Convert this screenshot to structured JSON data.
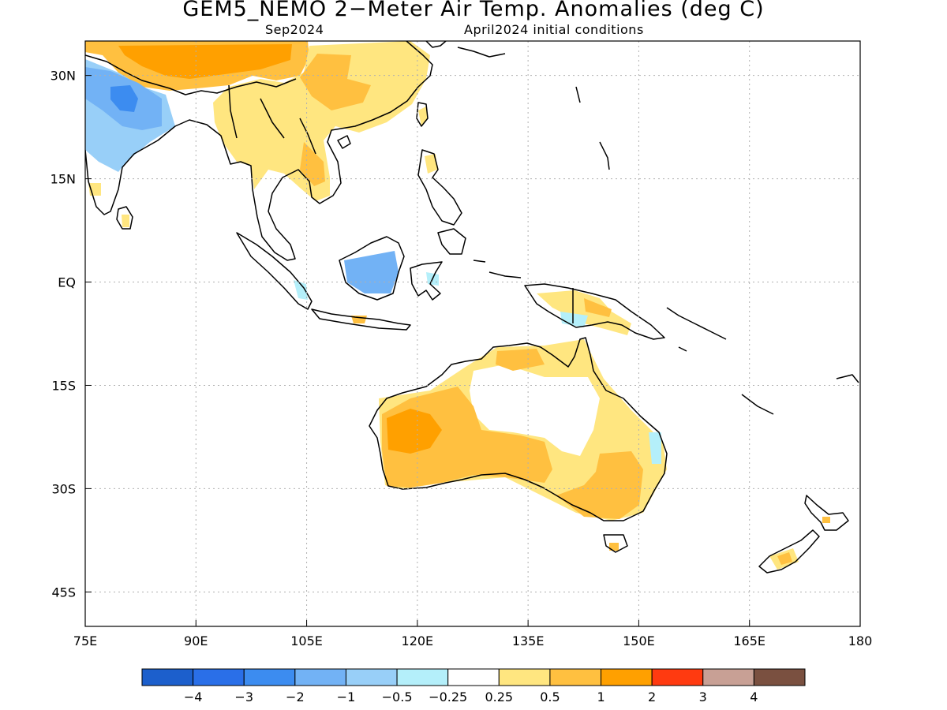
{
  "title": "GEM5_NEMO 2−Meter Air Temp. Anomalies (deg C)",
  "subtitle_left": "Sep2024",
  "subtitle_right": "April2024 initial conditions",
  "map": {
    "lon_range": [
      75,
      180
    ],
    "lat_range": [
      -50,
      35
    ],
    "lat_ticks": [
      {
        "value": 30,
        "label": "30N"
      },
      {
        "value": 15,
        "label": "15N"
      },
      {
        "value": 0,
        "label": "EQ"
      },
      {
        "value": -15,
        "label": "15S"
      },
      {
        "value": -30,
        "label": "30S"
      },
      {
        "value": -45,
        "label": "45S"
      }
    ],
    "lon_ticks": [
      {
        "value": 75,
        "label": "75E"
      },
      {
        "value": 90,
        "label": "90E"
      },
      {
        "value": 105,
        "label": "105E"
      },
      {
        "value": 120,
        "label": "120E"
      },
      {
        "value": 135,
        "label": "135E"
      },
      {
        "value": 150,
        "label": "150E"
      },
      {
        "value": 165,
        "label": "165E"
      },
      {
        "value": 180,
        "label": "180"
      }
    ],
    "grid": true
  },
  "colorbar": {
    "colors": [
      "#1c5fcc",
      "#2a6fe8",
      "#3c8cf0",
      "#72b2f5",
      "#98cff8",
      "#b4effa",
      "#ffffff",
      "#ffe680",
      "#ffc040",
      "#ffa000",
      "#ff3a10",
      "#c8a095",
      "#7a5040"
    ],
    "labels": [
      "−4",
      "−3",
      "−2",
      "−1",
      "−0.5",
      "−0.25",
      "0.25",
      "0.5",
      "1",
      "2",
      "3",
      "4"
    ]
  },
  "anomaly_fields": [
    {
      "region": "Indian subcontinent",
      "color": "#72b2f5"
    },
    {
      "region": "Borneo",
      "color": "#72b2f5"
    },
    {
      "region": "China / Southeast Asia",
      "color": "#ffe680"
    },
    {
      "region": "Tibet",
      "color": "#ffc040"
    },
    {
      "region": "Western Australia",
      "color": "#ffc040"
    },
    {
      "region": "Australia core",
      "color": "#ffa000"
    }
  ]
}
